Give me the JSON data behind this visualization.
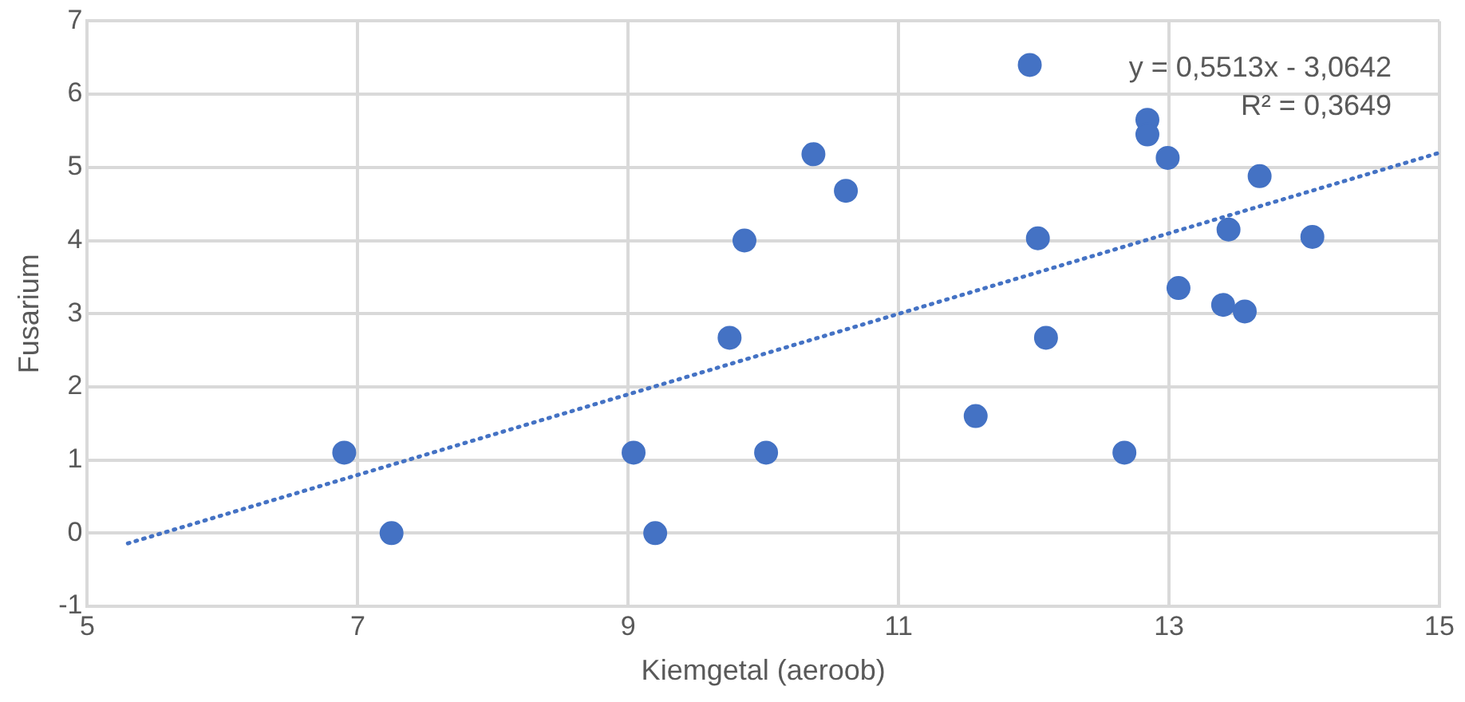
{
  "chart_data": {
    "type": "scatter",
    "xlabel": "Kiemgetal (aeroob)",
    "ylabel": "Fusarium",
    "xlim": [
      5,
      15
    ],
    "xticks": [
      5,
      7,
      9,
      11,
      13,
      15
    ],
    "ylim": [
      -1,
      7
    ],
    "yticks": [
      -1,
      0,
      1,
      2,
      3,
      4,
      5,
      6,
      7
    ],
    "grid": true,
    "legend": false,
    "marker": "circle",
    "series": [
      {
        "color": "#4472c4",
        "x": [
          6.9,
          7.25,
          9.04,
          9.2,
          10.02,
          9.75,
          9.86,
          10.37,
          10.61,
          11.57,
          12.03,
          12.09,
          11.97,
          12.67,
          12.84,
          12.84,
          12.99,
          13.07,
          13.4,
          13.44,
          13.56,
          13.67,
          14.06
        ],
        "values": [
          1.1,
          0,
          1.1,
          0,
          1.1,
          2.67,
          4.0,
          5.18,
          4.68,
          1.6,
          4.03,
          2.67,
          6.4,
          1.1,
          5.65,
          5.45,
          5.13,
          3.35,
          3.12,
          4.15,
          3.03,
          4.88,
          4.05
        ]
      },
      {
        "type": "line",
        "color": "#4472c4",
        "line_style": "dotted",
        "marker": "none",
        "x": [
          5.3,
          15
        ],
        "values": [
          -0.14,
          5.2
        ]
      }
    ],
    "annotations": [
      "y = 0,5513x - 3,0642",
      "R² = 0,3649"
    ]
  }
}
